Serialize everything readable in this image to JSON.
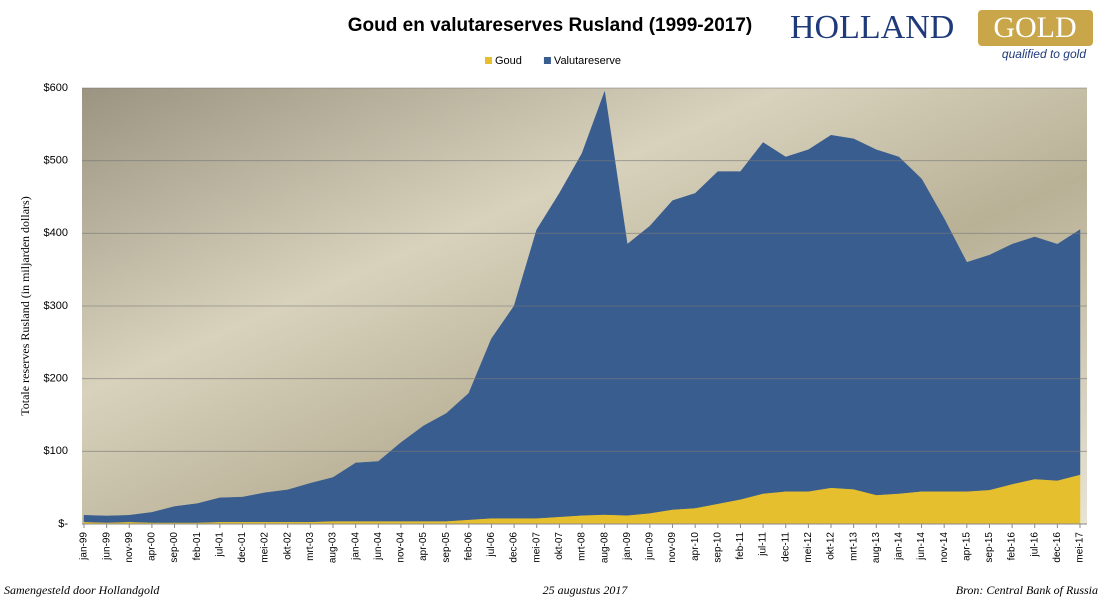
{
  "chart_data": {
    "type": "stacked-area",
    "title": "Goud en valutareserves Rusland (1999-2017)",
    "y_label": "Totale reserves Rusland (in miljarden dollars)",
    "brand": "HOLLAND",
    "brand_accent": "GOLD",
    "tagline": "qualified to gold",
    "footer_left": "Samengesteld door Hollandgold",
    "footer_center": "25 augustus 2017",
    "footer_right": "Bron: Central Bank of Russia",
    "categories": [
      "jan-99",
      "jun-99",
      "nov-99",
      "apr-00",
      "sep-00",
      "feb-01",
      "jul-01",
      "dec-01",
      "mei-02",
      "okt-02",
      "mrt-03",
      "aug-03",
      "jan-04",
      "jun-04",
      "nov-04",
      "apr-05",
      "sep-05",
      "feb-06",
      "jul-06",
      "dec-06",
      "mei-07",
      "okt-07",
      "mrt-08",
      "aug-08",
      "jan-09",
      "jun-09",
      "nov-09",
      "apr-10",
      "sep-10",
      "feb-11",
      "jul-11",
      "dec-11",
      "mei-12",
      "okt-12",
      "mrt-13",
      "aug-13",
      "jan-14",
      "jun-14",
      "nov-14",
      "apr-15",
      "sep-15",
      "feb-16",
      "jul-16",
      "dec-16",
      "mei-17"
    ],
    "series": [
      {
        "name": "Goud",
        "color": "#e6bf2e",
        "values": [
          3,
          2,
          3,
          2,
          2,
          2,
          3,
          3,
          3,
          3,
          3,
          4,
          4,
          4,
          4,
          4,
          4,
          6,
          8,
          8,
          8,
          10,
          12,
          13,
          12,
          15,
          20,
          22,
          28,
          34,
          42,
          45,
          45,
          50,
          48,
          40,
          42,
          45,
          45,
          45,
          47,
          55,
          62,
          60,
          68
        ]
      },
      {
        "name": "Valutareserve",
        "color": "#3a5d8f",
        "values": [
          9,
          9,
          9,
          14,
          22,
          26,
          33,
          34,
          40,
          44,
          53,
          60,
          80,
          82,
          108,
          131,
          148,
          174,
          247,
          292,
          397,
          445,
          498,
          582,
          373,
          395,
          425,
          433,
          457,
          451,
          483,
          460,
          470,
          485,
          482,
          475,
          463,
          430,
          375,
          315,
          323,
          330,
          333,
          325,
          337
        ]
      }
    ],
    "ylim": [
      0,
      600
    ],
    "yticks": [
      {
        "value": 0,
        "label": "$-"
      },
      {
        "value": 100,
        "label": "$100"
      },
      {
        "value": 200,
        "label": "$200"
      },
      {
        "value": 300,
        "label": "$300"
      },
      {
        "value": 400,
        "label": "$400"
      },
      {
        "value": 500,
        "label": "$500"
      },
      {
        "value": 600,
        "label": "$600"
      }
    ],
    "grid": true
  }
}
